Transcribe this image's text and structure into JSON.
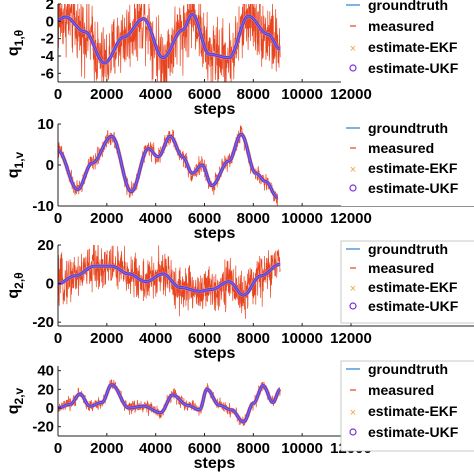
{
  "chart_data": [
    {
      "type": "line",
      "ylabel_main": "q",
      "ylabel_sub": "1,θ",
      "xlabel": "steps",
      "xlim": [
        0,
        12000
      ],
      "ylim": [
        -7,
        2
      ],
      "xticks": [
        "0",
        "2000",
        "4000",
        "6000",
        "8000",
        "10000",
        "12000"
      ],
      "yticks": [
        {
          "v": 2,
          "t": "2"
        },
        {
          "v": 0,
          "t": "0"
        },
        {
          "v": -2,
          "t": "-2"
        },
        {
          "v": -4,
          "t": "-4"
        },
        {
          "v": -6,
          "t": "-6"
        }
      ],
      "legend": [
        "groundtruth",
        "measured",
        "estimate-EKF",
        "estimate-UKF"
      ],
      "series": [
        {
          "name": "groundtruth",
          "x": [
            0,
            300,
            1100,
            1900,
            2700,
            3500,
            4300,
            5100,
            5500,
            6200,
            7000,
            7800,
            8600,
            9100
          ],
          "y": [
            0.2,
            0.5,
            -1.2,
            -4.8,
            -1.8,
            0.3,
            -4.2,
            -1.0,
            0.8,
            -3.8,
            -4.2,
            0.6,
            -1.5,
            -3.2
          ]
        },
        {
          "name": "measured",
          "noise": 3.0
        },
        {
          "name": "estimate-EKF",
          "x": [
            0,
            300,
            1100,
            1900,
            2700,
            3500,
            4300,
            5100,
            5500,
            6200,
            7000,
            7800,
            8600,
            9100
          ],
          "y": [
            0.2,
            0.5,
            -1.2,
            -4.8,
            -1.8,
            0.3,
            -4.2,
            -1.0,
            0.8,
            -3.8,
            -4.2,
            0.6,
            -1.5,
            -3.2
          ]
        },
        {
          "name": "estimate-UKF",
          "x": [
            0,
            300,
            1100,
            1900,
            2700,
            3500,
            4300,
            5100,
            5500,
            6200,
            7000,
            7800,
            8600,
            9100
          ],
          "y": [
            0.2,
            0.5,
            -1.2,
            -4.8,
            -1.8,
            0.3,
            -4.2,
            -1.0,
            0.8,
            -3.8,
            -4.2,
            0.6,
            -1.5,
            -3.2
          ]
        }
      ]
    },
    {
      "type": "line",
      "ylabel_main": "q",
      "ylabel_sub": "1,v",
      "xlabel": "steps",
      "xlim": [
        0,
        12000
      ],
      "ylim": [
        -10,
        10
      ],
      "xticks": [
        "0",
        "2000",
        "4000",
        "6000",
        "8000",
        "10000",
        "12000"
      ],
      "yticks": [
        {
          "v": 10,
          "t": "10"
        },
        {
          "v": 0,
          "t": "0"
        },
        {
          "v": -10,
          "t": "-10"
        }
      ],
      "legend": [
        "groundtruth",
        "measured",
        "estimate-EKF",
        "estimate-UKF"
      ],
      "series": [
        {
          "name": "groundtruth",
          "x": [
            0,
            800,
            1400,
            2200,
            3000,
            3700,
            4100,
            4600,
            5100,
            5500,
            5900,
            6300,
            7000,
            7500,
            8100,
            8500,
            9000
          ],
          "y": [
            3.5,
            -6.0,
            0.5,
            7.0,
            -6.5,
            4.0,
            2.0,
            7.0,
            2.0,
            -2.0,
            0.0,
            -5.0,
            1.0,
            7.5,
            -2.0,
            -4.0,
            -8.0
          ]
        },
        {
          "name": "measured",
          "noise": 1.6
        },
        {
          "name": "estimate-EKF",
          "x": [
            0,
            800,
            1400,
            2200,
            3000,
            3700,
            4100,
            4600,
            5100,
            5500,
            5900,
            6300,
            7000,
            7500,
            8100,
            8500,
            9000
          ],
          "y": [
            3.5,
            -6.0,
            0.5,
            7.0,
            -6.5,
            4.0,
            2.0,
            7.0,
            2.0,
            -2.0,
            0.0,
            -5.0,
            1.0,
            7.5,
            -2.0,
            -4.0,
            -8.0
          ]
        },
        {
          "name": "estimate-UKF",
          "x": [
            0,
            800,
            1400,
            2200,
            3000,
            3700,
            4100,
            4600,
            5100,
            5500,
            5900,
            6300,
            7000,
            7500,
            8100,
            8500,
            9000
          ],
          "y": [
            3.5,
            -6.0,
            0.5,
            7.0,
            -6.5,
            4.0,
            2.0,
            7.0,
            2.0,
            -2.0,
            0.0,
            -5.0,
            1.0,
            7.5,
            -2.0,
            -4.0,
            -8.0
          ]
        }
      ]
    },
    {
      "type": "line",
      "ylabel_main": "q",
      "ylabel_sub": "2,θ",
      "xlabel": "steps",
      "xlim": [
        0,
        12000
      ],
      "ylim": [
        -22,
        20
      ],
      "xticks": [
        "0",
        "2000",
        "4000",
        "6000",
        "8000",
        "10000",
        "12000"
      ],
      "yticks": [
        {
          "v": 20,
          "t": "20"
        },
        {
          "v": 0,
          "t": "0"
        },
        {
          "v": -20,
          "t": "-20"
        }
      ],
      "legend": [
        "groundtruth",
        "measured",
        "estimate-EKF",
        "estimate-UKF"
      ],
      "series": [
        {
          "name": "groundtruth",
          "x": [
            0,
            700,
            1500,
            2200,
            2900,
            3600,
            4300,
            5000,
            5800,
            6300,
            7000,
            7600,
            8300,
            9100
          ],
          "y": [
            0,
            4,
            9,
            9,
            5,
            1,
            5,
            -2,
            -4,
            -3,
            1,
            -6,
            4,
            10
          ]
        },
        {
          "name": "measured",
          "noise": 9.0
        },
        {
          "name": "estimate-EKF",
          "x": [
            0,
            700,
            1500,
            2200,
            2900,
            3600,
            4300,
            5000,
            5800,
            6300,
            7000,
            7600,
            8300,
            9100
          ],
          "y": [
            0,
            4,
            9,
            9,
            5,
            1,
            5,
            -2,
            -4,
            -3,
            1,
            -6,
            4,
            10
          ]
        },
        {
          "name": "estimate-UKF",
          "x": [
            0,
            700,
            1500,
            2200,
            2900,
            3600,
            4300,
            5000,
            5800,
            6300,
            7000,
            7600,
            8300,
            9100
          ],
          "y": [
            0,
            4,
            9,
            9,
            5,
            1,
            5,
            -2,
            -4,
            -3,
            1,
            -6,
            4,
            10
          ]
        }
      ]
    },
    {
      "type": "line",
      "ylabel_main": "q",
      "ylabel_sub": "2,v",
      "xlabel": "steps",
      "xlim": [
        0,
        12000
      ],
      "ylim": [
        -30,
        45
      ],
      "xticks": [
        "0",
        "2000",
        "4000",
        "6000",
        "8000",
        "10000",
        "12000"
      ],
      "yticks": [
        {
          "v": 40,
          "t": "40"
        },
        {
          "v": 20,
          "t": "20"
        },
        {
          "v": 0,
          "t": "0"
        },
        {
          "v": -20,
          "t": "-20"
        }
      ],
      "legend": [
        "groundtruth",
        "measured",
        "estimate-EKF",
        "estimate-UKF"
      ],
      "series": [
        {
          "name": "groundtruth",
          "x": [
            0,
            500,
            900,
            1300,
            1800,
            2200,
            2900,
            3500,
            4200,
            4700,
            5300,
            5800,
            6100,
            6600,
            7100,
            7600,
            8000,
            8400,
            8800,
            9100
          ],
          "y": [
            0,
            4,
            15,
            2,
            6,
            25,
            0,
            2,
            -5,
            14,
            3,
            -2,
            20,
            3,
            -2,
            -15,
            5,
            24,
            6,
            20
          ]
        },
        {
          "name": "measured",
          "noise": 5.0
        },
        {
          "name": "estimate-EKF",
          "x": [
            0,
            500,
            900,
            1300,
            1800,
            2200,
            2900,
            3500,
            4200,
            4700,
            5300,
            5800,
            6100,
            6600,
            7100,
            7600,
            8000,
            8400,
            8800,
            9100
          ],
          "y": [
            0,
            4,
            15,
            2,
            6,
            25,
            0,
            2,
            -5,
            14,
            3,
            -2,
            20,
            3,
            -2,
            -15,
            5,
            24,
            6,
            20
          ]
        },
        {
          "name": "estimate-UKF",
          "x": [
            0,
            500,
            900,
            1300,
            1800,
            2200,
            2900,
            3500,
            4200,
            4700,
            5300,
            5800,
            6100,
            6600,
            7100,
            7600,
            8000,
            8400,
            8800,
            9100
          ],
          "y": [
            0,
            4,
            15,
            2,
            6,
            25,
            0,
            2,
            -5,
            14,
            3,
            -2,
            20,
            3,
            -2,
            -15,
            5,
            24,
            6,
            20
          ]
        }
      ]
    }
  ],
  "colors": {
    "groundtruth": "#4a90d9",
    "measured": "#e8441f",
    "estimate-EKF": "#f2a33a",
    "estimate-UKF": "#7b2fe0"
  }
}
